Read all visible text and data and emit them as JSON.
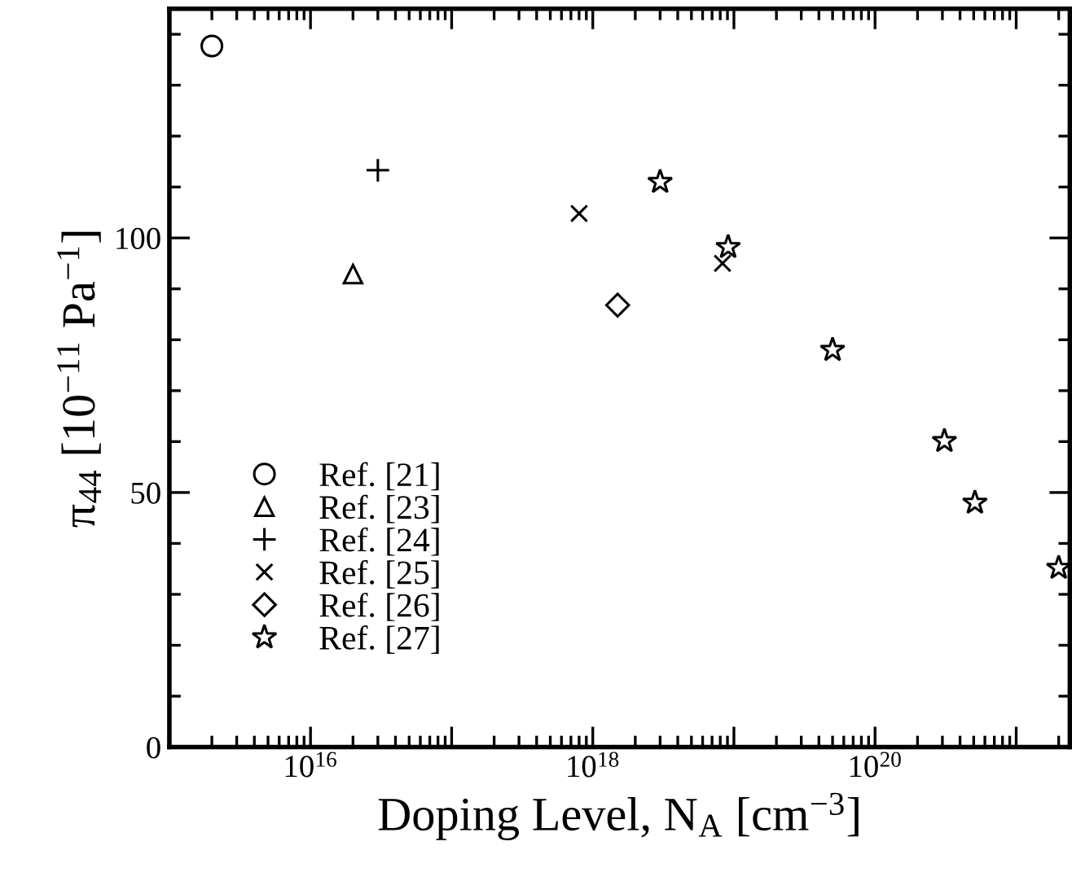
{
  "chart_data": {
    "type": "scatter",
    "xlabel": "Doping Level, N$_{A}$ [cm$^{−3}$]",
    "ylabel": "π$_{44}$ [10$^{−11}$ Pa$^{−1}$]",
    "log": "x",
    "xlim": [
      1000000000000000.0,
      2.4e+21
    ],
    "ylim": [
      0,
      145
    ],
    "xticks": [
      {
        "value": 1e+16,
        "label": "10$^{16}$"
      },
      {
        "value": 1e+17,
        "label": null
      },
      {
        "value": 1e+18,
        "label": "10$^{18}$"
      },
      {
        "value": 1e+19,
        "label": null
      },
      {
        "value": 1e+20,
        "label": "10$^{20}$"
      },
      {
        "value": 1e+21,
        "label": null
      }
    ],
    "yticks": [
      0,
      {
        "value": 10,
        "label": null
      },
      {
        "value": 20,
        "label": null
      },
      {
        "value": 30,
        "label": null
      },
      {
        "value": 40,
        "label": null
      },
      50,
      {
        "value": 60,
        "label": null
      },
      {
        "value": 70,
        "label": null
      },
      {
        "value": 80,
        "label": null
      },
      {
        "value": 90,
        "label": null
      },
      100,
      {
        "value": 110,
        "label": null
      },
      {
        "value": 120,
        "label": null
      },
      {
        "value": 130,
        "label": null
      },
      {
        "value": 140,
        "label": null
      }
    ],
    "grid": false,
    "legend": "bottom left",
    "series": [
      {
        "name": "Ref. [21]",
        "color": "#000000",
        "marker": "circle",
        "x": [
          2000000000000000.0
        ],
        "values": [
          137.7
        ]
      },
      {
        "name": "Ref. [23]",
        "color": "#000000",
        "marker": "triangle",
        "x": [
          2e+16
        ],
        "values": [
          92.9
        ]
      },
      {
        "name": "Ref. [24]",
        "color": "#000000",
        "marker": "plus",
        "x": [
          3e+16
        ],
        "values": [
          113.3
        ]
      },
      {
        "name": "Ref. [25]",
        "color": "#000000",
        "marker": "cross",
        "x": [
          8e+17,
          8.3e+18
        ],
        "values": [
          104.8,
          95.0
        ]
      },
      {
        "name": "Ref. [26]",
        "color": "#000000",
        "marker": "diamond",
        "x": [
          1.5e+18
        ],
        "values": [
          86.8
        ]
      },
      {
        "name": "Ref. [27]",
        "color": "#000000",
        "marker": "star",
        "x": [
          3e+18,
          9.1e+18,
          5e+19,
          3.1e+20,
          5.1e+20,
          2e+21
        ],
        "values": [
          111.0,
          98.2,
          78.0,
          60.1,
          48.0,
          35.2
        ]
      }
    ]
  }
}
